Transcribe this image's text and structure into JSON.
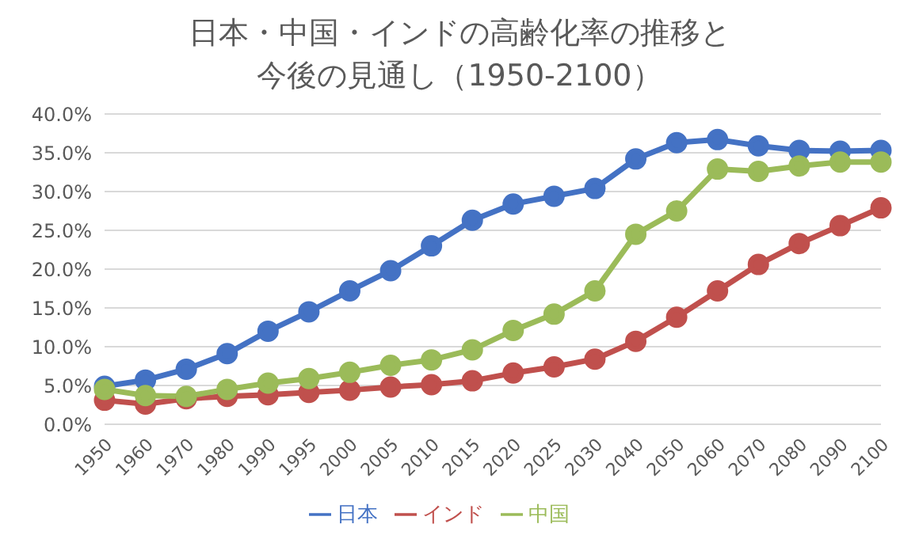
{
  "chart_data": {
    "type": "line",
    "title": "日本・中国・インドの高齢化率の推移と今後の見通し（1950-2100）",
    "categories": [
      "1950",
      "1960",
      "1970",
      "1980",
      "1990",
      "1995",
      "2000",
      "2005",
      "2010",
      "2015",
      "2020",
      "2025",
      "2030",
      "2040",
      "2050",
      "2060",
      "2070",
      "2080",
      "2090",
      "2100"
    ],
    "series": [
      {
        "name": "日本",
        "color": "#4472c4",
        "values": [
          4.9,
          5.7,
          7.1,
          9.1,
          12.0,
          14.5,
          17.2,
          19.8,
          23.0,
          26.3,
          28.4,
          29.4,
          30.4,
          34.2,
          36.3,
          36.7,
          35.9,
          35.3,
          35.2,
          35.3
        ]
      },
      {
        "name": "インド",
        "color": "#c0504d",
        "values": [
          3.1,
          2.6,
          3.3,
          3.6,
          3.8,
          4.1,
          4.4,
          4.8,
          5.1,
          5.6,
          6.6,
          7.4,
          8.4,
          10.7,
          13.8,
          17.2,
          20.6,
          23.3,
          25.6,
          27.9
        ]
      },
      {
        "name": "中国",
        "color": "#9bbb59",
        "values": [
          4.5,
          3.7,
          3.6,
          4.5,
          5.3,
          5.9,
          6.7,
          7.6,
          8.3,
          9.6,
          12.1,
          14.2,
          17.2,
          24.5,
          27.5,
          32.9,
          32.6,
          33.3,
          33.8,
          33.8
        ]
      }
    ],
    "ylim": [
      0,
      40
    ],
    "yticks": [
      {
        "value": 0,
        "label": "0.0%"
      },
      {
        "value": 5,
        "label": "5.0%"
      },
      {
        "value": 10,
        "label": "10.0%"
      },
      {
        "value": 15,
        "label": "15.0%"
      },
      {
        "value": 20,
        "label": "20.0%"
      },
      {
        "value": 25,
        "label": "25.0%"
      },
      {
        "value": 30,
        "label": "30.0%"
      },
      {
        "value": 35,
        "label": "35.0%"
      },
      {
        "value": 40,
        "label": "40.0%"
      }
    ],
    "grid": "y",
    "legend": "bottom",
    "marker": "circle",
    "line_style": "solid"
  }
}
